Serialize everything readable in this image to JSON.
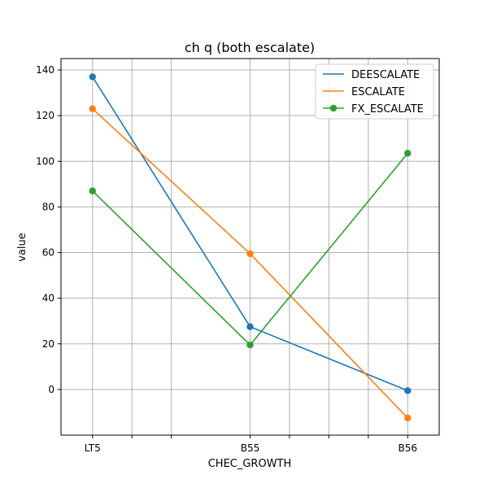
{
  "chart_data": {
    "type": "line",
    "title": "ch q (both escalate)",
    "xlabel": "CHEC_GROWTH",
    "ylabel": "value",
    "categories": [
      "LT5",
      "B55",
      "B56"
    ],
    "x_tick_positions": [
      0,
      0.25,
      0.5,
      1,
      1.25,
      1.5,
      1.75,
      2
    ],
    "x_tick_labels": [
      "LT5",
      "",
      "",
      "B55",
      "",
      "",
      "",
      "B56"
    ],
    "xlim": [
      -0.2,
      2.2
    ],
    "ylim": [
      -20,
      145
    ],
    "yticks": [
      0,
      20,
      40,
      60,
      80,
      100,
      120,
      140
    ],
    "grid": true,
    "legend_position": "top-right",
    "series": [
      {
        "name": "DEESCALATE",
        "color": "#1f77b4",
        "values": [
          137,
          27.5,
          -0.5
        ],
        "legend_marker": false
      },
      {
        "name": "ESCALATE",
        "color": "#ff7f0e",
        "values": [
          123,
          59.5,
          -12.5
        ],
        "legend_marker": false
      },
      {
        "name": "FX_ESCALATE",
        "color": "#2ca02c",
        "values": [
          87,
          19.5,
          103.5
        ],
        "legend_marker": true
      }
    ]
  }
}
